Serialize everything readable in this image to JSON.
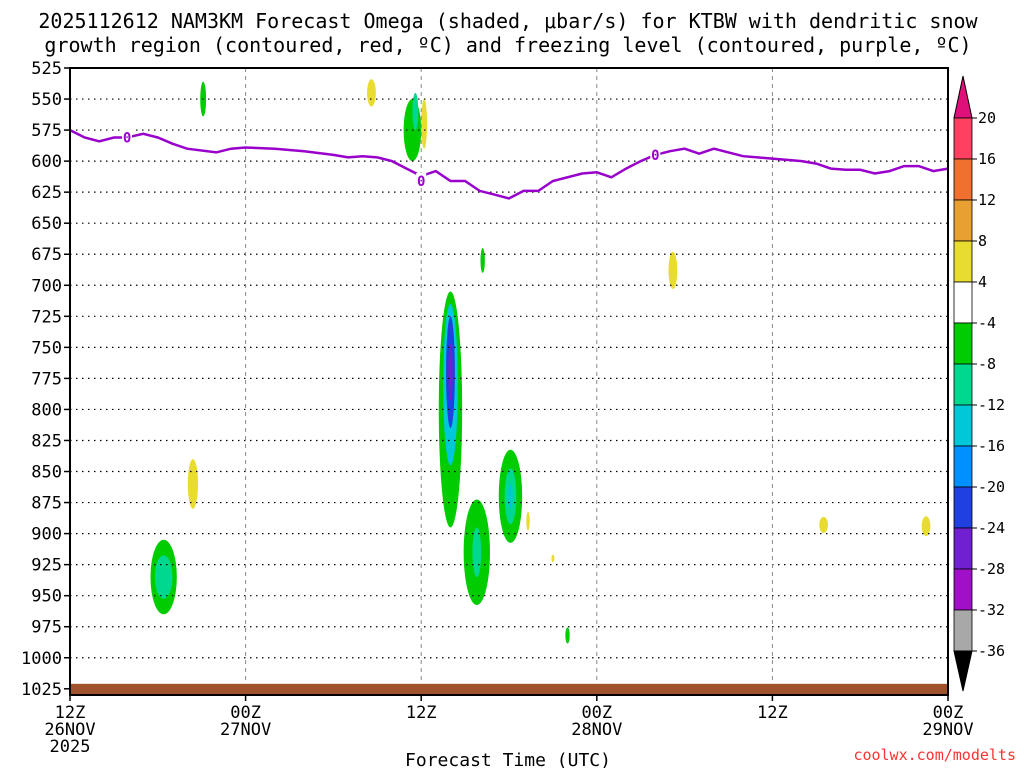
{
  "title_line1": "2025112612 NAM3KM Forecast Omega (shaded, μbar/s) for KTBW with dendritic snow",
  "title_line2": "growth region (contoured, red, ºC) and freezing level (contoured, purple, ºC)",
  "footer_text": "coolwx.com/modelts",
  "chart_data": {
    "type": "heatmap",
    "xlabel": "Forecast Time (UTC)",
    "ylabel": "",
    "x_unit": "hours since 2025-11-26 12Z",
    "xlim": [
      0,
      60
    ],
    "ylim": [
      1030,
      525
    ],
    "y_ticks": [
      525,
      550,
      575,
      600,
      625,
      650,
      675,
      700,
      725,
      750,
      775,
      800,
      825,
      850,
      875,
      900,
      925,
      950,
      975,
      1000,
      1025
    ],
    "x_ticks": [
      {
        "x": 0,
        "lines": [
          "12Z",
          "26NOV",
          "2025"
        ]
      },
      {
        "x": 12,
        "lines": [
          "00Z",
          "27NOV"
        ]
      },
      {
        "x": 24,
        "lines": [
          "12Z"
        ]
      },
      {
        "x": 36,
        "lines": [
          "00Z",
          "28NOV"
        ]
      },
      {
        "x": 48,
        "lines": [
          "12Z"
        ]
      },
      {
        "x": 60,
        "lines": [
          "00Z",
          "29NOV"
        ]
      }
    ],
    "colorbar": {
      "tick_labels": [
        "20",
        "16",
        "12",
        "8",
        "4",
        "-4",
        "-8",
        "-12",
        "-16",
        "-20",
        "-24",
        "-28",
        "-32",
        "-36"
      ],
      "bins": [
        {
          "color": "#ff4060",
          "range": [
            16,
            20
          ]
        },
        {
          "color": "#f07030",
          "range": [
            12,
            16
          ]
        },
        {
          "color": "#e8a030",
          "range": [
            8,
            12
          ]
        },
        {
          "color": "#e8dc30",
          "range": [
            4,
            8
          ]
        },
        {
          "color": "#ffffff",
          "range": [
            -4,
            4
          ]
        },
        {
          "color": "#00cc00",
          "range": [
            -8,
            -4
          ]
        },
        {
          "color": "#00d890",
          "range": [
            -12,
            -8
          ]
        },
        {
          "color": "#00c8d8",
          "range": [
            -16,
            -12
          ]
        },
        {
          "color": "#0090ff",
          "range": [
            -20,
            -16
          ]
        },
        {
          "color": "#2040e0",
          "range": [
            -24,
            -20
          ]
        },
        {
          "color": "#7020d0",
          "range": [
            -28,
            -24
          ]
        },
        {
          "color": "#a010c8",
          "range": [
            -32,
            -28
          ]
        },
        {
          "color": "#a8a8a8",
          "range": [
            -36,
            -32
          ]
        }
      ],
      "top_arrow_color": "#e0107a",
      "bottom_arrow_color": "#000000"
    },
    "freezing_level": {
      "color": "#9900cc",
      "label": "0",
      "label_points": [
        [
          3.9,
          581
        ],
        [
          24,
          616
        ],
        [
          40,
          595
        ]
      ],
      "points": [
        [
          0,
          575
        ],
        [
          1,
          581
        ],
        [
          2,
          584
        ],
        [
          3,
          581
        ],
        [
          3.9,
          581
        ],
        [
          5,
          578
        ],
        [
          6,
          581
        ],
        [
          7,
          586
        ],
        [
          8,
          590
        ],
        [
          10,
          593
        ],
        [
          11,
          590
        ],
        [
          12,
          589
        ],
        [
          14,
          590
        ],
        [
          16,
          592
        ],
        [
          18,
          595
        ],
        [
          19,
          597
        ],
        [
          20,
          596
        ],
        [
          21,
          597
        ],
        [
          22,
          600
        ],
        [
          23,
          606
        ],
        [
          24,
          612
        ],
        [
          25,
          608
        ],
        [
          26,
          616
        ],
        [
          27,
          616
        ],
        [
          28,
          624
        ],
        [
          29,
          627
        ],
        [
          30,
          630
        ],
        [
          31,
          624
        ],
        [
          32,
          624
        ],
        [
          33,
          616
        ],
        [
          35,
          610
        ],
        [
          36,
          609
        ],
        [
          37,
          613
        ],
        [
          38,
          606
        ],
        [
          39,
          600
        ],
        [
          40,
          595
        ],
        [
          41,
          592
        ],
        [
          42,
          590
        ],
        [
          43,
          594
        ],
        [
          44,
          590
        ],
        [
          45,
          593
        ],
        [
          46,
          596
        ],
        [
          47,
          597
        ],
        [
          48,
          598
        ],
        [
          50,
          600
        ],
        [
          51,
          602
        ],
        [
          52,
          606
        ],
        [
          53,
          607
        ],
        [
          54,
          607
        ],
        [
          55,
          610
        ],
        [
          56,
          608
        ],
        [
          57,
          604
        ],
        [
          58,
          604
        ],
        [
          59,
          608
        ],
        [
          60,
          606
        ]
      ]
    },
    "ground": {
      "color": "#a0522d",
      "pressure_top": 1021,
      "pressure_bottom": 1030
    },
    "omega_cells": [
      {
        "x": 9.1,
        "p": 550,
        "w": 0.2,
        "h": 28,
        "color": "#00cc00"
      },
      {
        "x": 20.6,
        "p": 545,
        "w": 0.3,
        "h": 22,
        "color": "#e8dc30"
      },
      {
        "x": 23.4,
        "p": 575,
        "w": 0.6,
        "h": 50,
        "color": "#00cc00"
      },
      {
        "x": 23.6,
        "p": 560,
        "w": 0.2,
        "h": 30,
        "color": "#00d890"
      },
      {
        "x": 24.2,
        "p": 570,
        "w": 0.2,
        "h": 40,
        "color": "#e8dc30"
      },
      {
        "x": 26.0,
        "p": 800,
        "w": 0.8,
        "h": 190,
        "color": "#00cc00"
      },
      {
        "x": 26.0,
        "p": 780,
        "w": 0.5,
        "h": 130,
        "color": "#00c8d8"
      },
      {
        "x": 26.0,
        "p": 770,
        "w": 0.3,
        "h": 90,
        "color": "#2040e0"
      },
      {
        "x": 26.0,
        "p": 770,
        "w": 0.15,
        "h": 45,
        "color": "#7020d0"
      },
      {
        "x": 28.2,
        "p": 680,
        "w": 0.15,
        "h": 20,
        "color": "#00cc00"
      },
      {
        "x": 27.8,
        "p": 915,
        "w": 0.9,
        "h": 85,
        "color": "#00cc00"
      },
      {
        "x": 27.8,
        "p": 915,
        "w": 0.3,
        "h": 40,
        "color": "#00d890"
      },
      {
        "x": 30.1,
        "p": 870,
        "w": 0.8,
        "h": 75,
        "color": "#00cc00"
      },
      {
        "x": 30.1,
        "p": 870,
        "w": 0.4,
        "h": 45,
        "color": "#00d890"
      },
      {
        "x": 30.1,
        "p": 870,
        "w": 0.15,
        "h": 20,
        "color": "#00c8d8"
      },
      {
        "x": 31.3,
        "p": 890,
        "w": 0.12,
        "h": 15,
        "color": "#e8dc30"
      },
      {
        "x": 33.0,
        "p": 920,
        "w": 0.1,
        "h": 6,
        "color": "#e8dc30"
      },
      {
        "x": 34.0,
        "p": 982,
        "w": 0.15,
        "h": 13,
        "color": "#00cc00"
      },
      {
        "x": 6.4,
        "p": 935,
        "w": 0.9,
        "h": 60,
        "color": "#00cc00"
      },
      {
        "x": 6.4,
        "p": 935,
        "w": 0.6,
        "h": 35,
        "color": "#00d890"
      },
      {
        "x": 8.4,
        "p": 860,
        "w": 0.35,
        "h": 40,
        "color": "#e8dc30"
      },
      {
        "x": 41.2,
        "p": 688,
        "w": 0.3,
        "h": 30,
        "color": "#e8dc30"
      },
      {
        "x": 51.5,
        "p": 893,
        "w": 0.3,
        "h": 13,
        "color": "#e8dc30"
      },
      {
        "x": 58.5,
        "p": 894,
        "w": 0.3,
        "h": 16,
        "color": "#e8dc30"
      }
    ]
  }
}
